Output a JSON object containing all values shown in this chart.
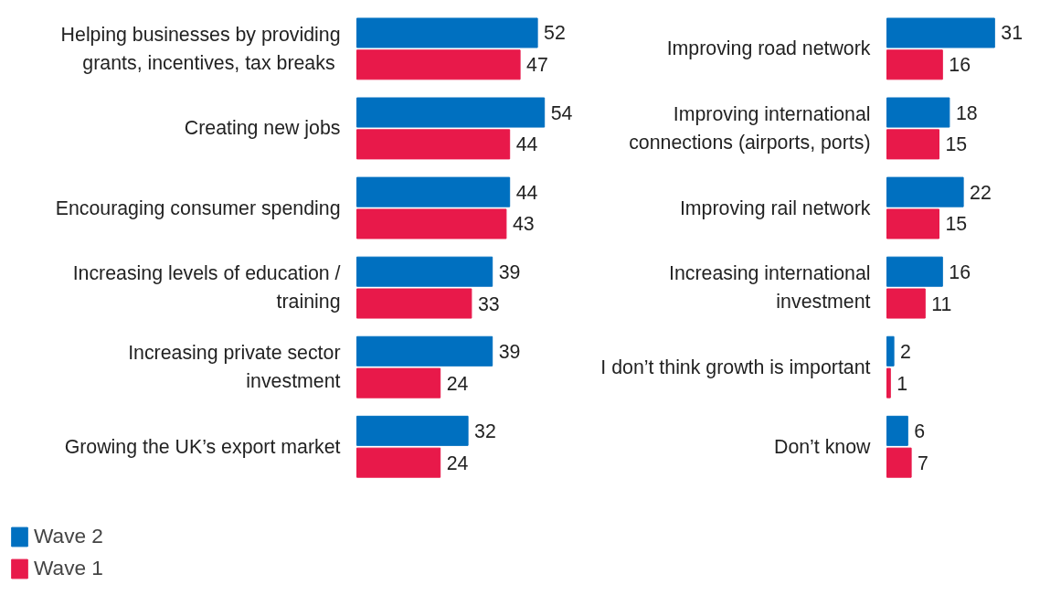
{
  "chart_data": [
    {
      "type": "bar",
      "orientation": "horizontal",
      "data_labels": true,
      "legend": "bottom left",
      "grid": false,
      "categories": [
        "Helping businesses by providing grants, incentives, tax  breaks",
        "Creating new jobs",
        "Encouraging consumer spending",
        "Increasing levels of education / training",
        "Increasing private sector investment",
        "Growing the UK’s export market"
      ],
      "series": [
        {
          "name": "Wave 2",
          "color": "#0070c0",
          "values": [
            52,
            54,
            44,
            39,
            39,
            32
          ]
        },
        {
          "name": "Wave 1",
          "color": "#e8194a",
          "values": [
            47,
            44,
            43,
            33,
            24,
            24
          ]
        }
      ]
    },
    {
      "type": "bar",
      "orientation": "horizontal",
      "data_labels": true,
      "grid": false,
      "categories": [
        "Improving road network",
        "Improving international connections (airports, ports)",
        "Improving rail network",
        "Increasing international investment",
        "I don’t think growth is important",
        "Don’t know"
      ],
      "series": [
        {
          "color": "#0070c0",
          "values": [
            31,
            18,
            22,
            16,
            2,
            6
          ]
        },
        {
          "color": "#e8194a",
          "values": [
            16,
            15,
            15,
            11,
            1,
            7
          ]
        }
      ]
    }
  ]
}
